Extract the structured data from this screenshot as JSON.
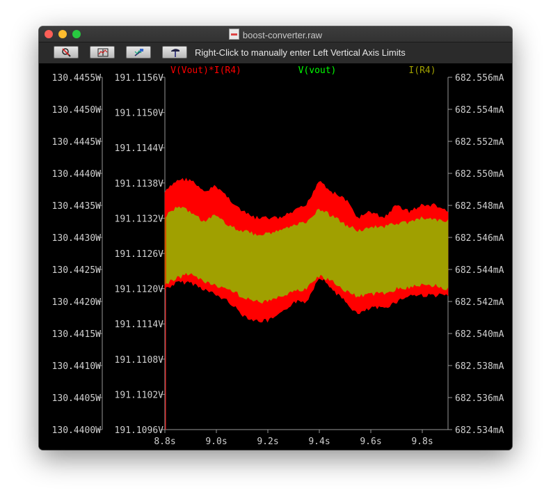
{
  "window": {
    "title": "boost-converter.raw"
  },
  "toolbar": {
    "buttons": [
      {
        "name": "zoom-cancel-button",
        "icon": "magnifier-cancel-icon"
      },
      {
        "name": "autorange-button",
        "icon": "autorange-icon"
      },
      {
        "name": "zoom-fit-button",
        "icon": "zoom-fit-icon"
      },
      {
        "name": "pan-button",
        "icon": "hammer-icon"
      }
    ],
    "hint": "Right-Click to manually enter Left Vertical Axis Limits"
  },
  "colors": {
    "background": "#000000",
    "axis": "#999999",
    "text": "#d0d0d0",
    "power": "#ff0000",
    "vout": "#00ff00",
    "current": "#a0a000"
  },
  "chart_data": {
    "type": "line",
    "legend": [
      "V(Vout)*I(R4)",
      "V(vout)",
      "I(R4)"
    ],
    "legend_placement": "top",
    "grid": false,
    "xlim": [
      8.8,
      9.9
    ],
    "x_ticks": [
      "8.8s",
      "9.0s",
      "9.2s",
      "9.4s",
      "9.6s",
      "9.8s"
    ],
    "axes": {
      "left_outer": {
        "series": "V(Vout)*I(R4)",
        "ylim": [
          130.44,
          130.4455
        ],
        "ticks": [
          "130.4455W",
          "130.4450W",
          "130.4445W",
          "130.4440W",
          "130.4435W",
          "130.4430W",
          "130.4425W",
          "130.4420W",
          "130.4415W",
          "130.4410W",
          "130.4405W",
          "130.4400W"
        ]
      },
      "left_inner": {
        "series": "V(vout)",
        "ylim": [
          191.1096,
          191.1156
        ],
        "ticks": [
          "191.1156V",
          "191.1150V",
          "191.1144V",
          "191.1138V",
          "191.1132V",
          "191.1126V",
          "191.1120V",
          "191.1114V",
          "191.1108V",
          "191.1102V",
          "191.1096V"
        ]
      },
      "right": {
        "series": "I(R4)",
        "ylim": [
          682.534,
          682.556
        ],
        "ticks": [
          "682.556mA",
          "682.554mA",
          "682.552mA",
          "682.550mA",
          "682.548mA",
          "682.546mA",
          "682.544mA",
          "682.542mA",
          "682.540mA",
          "682.538mA",
          "682.536mA",
          "682.534mA"
        ]
      }
    },
    "series": [
      {
        "name": "V(Vout)*I(R4)",
        "axis": "left_outer",
        "envelope_x": [
          8.8,
          8.85,
          8.9,
          8.95,
          9.0,
          9.05,
          9.1,
          9.15,
          9.2,
          9.25,
          9.3,
          9.35,
          9.4,
          9.45,
          9.5,
          9.55,
          9.6,
          9.65,
          9.7,
          9.75,
          9.8,
          9.85,
          9.9
        ],
        "envelope_max": [
          130.4437,
          130.4439,
          130.4439,
          130.4437,
          130.4438,
          130.4436,
          130.4434,
          130.4433,
          130.4433,
          130.4433,
          130.4434,
          130.4435,
          130.4439,
          130.4437,
          130.4436,
          130.4433,
          130.4434,
          130.4433,
          130.4435,
          130.4434,
          130.4435,
          130.4435,
          130.4434
        ],
        "envelope_min": [
          130.4422,
          130.4423,
          130.4423,
          130.4422,
          130.4421,
          130.442,
          130.4418,
          130.4417,
          130.4417,
          130.4418,
          130.442,
          130.442,
          130.4424,
          130.4422,
          130.442,
          130.4418,
          130.4419,
          130.4419,
          130.442,
          130.4421,
          130.4421,
          130.4421,
          130.4421
        ]
      },
      {
        "name": "V(vout)",
        "axis": "left_inner",
        "envelope_x": [
          8.8,
          8.85,
          8.9,
          8.95,
          9.0,
          9.05,
          9.1,
          9.15,
          9.2,
          9.25,
          9.3,
          9.35,
          9.4,
          9.45,
          9.5,
          9.55,
          9.6,
          9.65,
          9.7,
          9.75,
          9.8,
          9.85,
          9.9
        ],
        "envelope_max": [
          191.1132,
          191.1134,
          191.1133,
          191.1131,
          191.1132,
          191.113,
          191.1129,
          191.1128,
          191.1128,
          191.1129,
          191.113,
          191.1131,
          191.1134,
          191.1132,
          191.113,
          191.1129,
          191.113,
          191.113,
          191.1131,
          191.1131,
          191.1132,
          191.1132,
          191.1131
        ],
        "envelope_min": [
          191.1122,
          191.1124,
          191.1125,
          191.1123,
          191.1122,
          191.1121,
          191.1119,
          191.1118,
          191.1118,
          191.1119,
          191.112,
          191.1121,
          191.1124,
          191.1123,
          191.1121,
          191.1119,
          191.112,
          191.112,
          191.1121,
          191.1121,
          191.1122,
          191.1122,
          191.1121
        ]
      },
      {
        "name": "I(R4)",
        "axis": "right",
        "envelope_x": [
          8.8,
          8.85,
          8.9,
          8.95,
          9.0,
          9.05,
          9.1,
          9.15,
          9.2,
          9.25,
          9.3,
          9.35,
          9.4,
          9.45,
          9.5,
          9.55,
          9.6,
          9.65,
          9.7,
          9.75,
          9.8,
          9.85,
          9.9
        ],
        "envelope_max": [
          682.5473,
          682.5479,
          682.5476,
          682.547,
          682.5474,
          682.5467,
          682.5464,
          682.5462,
          682.5462,
          682.5464,
          682.5467,
          682.547,
          682.5478,
          682.5473,
          682.5468,
          682.5464,
          682.5467,
          682.5466,
          682.5469,
          682.5469,
          682.5472,
          682.5471,
          682.547
        ],
        "envelope_min": [
          682.5431,
          682.5435,
          682.5438,
          682.5432,
          682.543,
          682.5428,
          682.5423,
          682.542,
          682.542,
          682.5423,
          682.5426,
          682.5428,
          682.5436,
          682.5433,
          682.5427,
          682.5423,
          682.5425,
          682.5425,
          682.5428,
          682.5429,
          682.5431,
          682.543,
          682.5428
        ]
      }
    ]
  }
}
